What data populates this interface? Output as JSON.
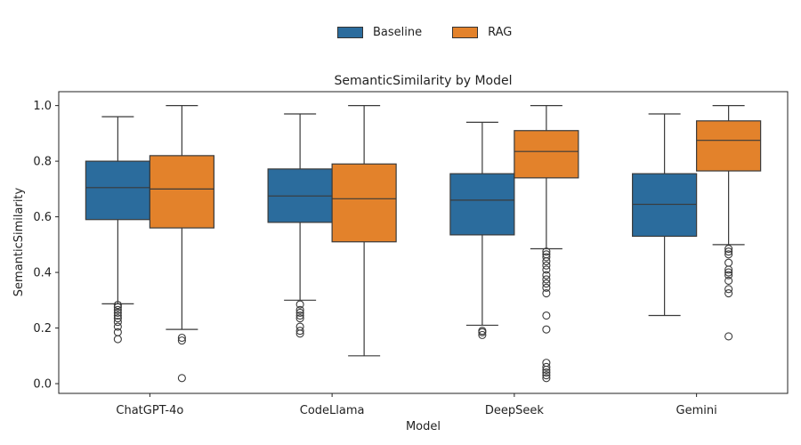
{
  "chart_data": {
    "type": "box",
    "title": "SemanticSimilarity by Model",
    "xlabel": "Model",
    "ylabel": "SemanticSimilarity",
    "categories": [
      "ChatGPT-4o",
      "CodeLlama",
      "DeepSeek",
      "Gemini"
    ],
    "ylim": [
      -0.035,
      1.05
    ],
    "yticks": [
      0.0,
      0.2,
      0.4,
      0.6,
      0.8,
      1.0
    ],
    "ytick_labels": [
      "0.0",
      "0.2",
      "0.4",
      "0.6",
      "0.8",
      "1.0"
    ],
    "legend_position": "top-center",
    "grid": false,
    "series": [
      {
        "name": "Baseline",
        "color": "#2b6c9d",
        "boxes": [
          {
            "q1": 0.59,
            "median": 0.705,
            "q3": 0.8,
            "whisker_low": 0.287,
            "whisker_high": 0.96,
            "outliers": [
              0.283,
              0.275,
              0.265,
              0.255,
              0.245,
              0.235,
              0.222,
              0.205,
              0.185,
              0.16
            ]
          },
          {
            "q1": 0.58,
            "median": 0.675,
            "q3": 0.772,
            "whisker_low": 0.3,
            "whisker_high": 0.97,
            "outliers": [
              0.285,
              0.265,
              0.255,
              0.245,
              0.235,
              0.205,
              0.19,
              0.18
            ]
          },
          {
            "q1": 0.535,
            "median": 0.66,
            "q3": 0.755,
            "whisker_low": 0.21,
            "whisker_high": 0.94,
            "outliers": [
              0.19,
              0.185,
              0.175
            ]
          },
          {
            "q1": 0.53,
            "median": 0.645,
            "q3": 0.755,
            "whisker_low": 0.245,
            "whisker_high": 0.97,
            "outliers": []
          }
        ]
      },
      {
        "name": "RAG",
        "color": "#e3822b",
        "boxes": [
          {
            "q1": 0.56,
            "median": 0.7,
            "q3": 0.82,
            "whisker_low": 0.195,
            "whisker_high": 1.0,
            "outliers": [
              0.165,
              0.155,
              0.02
            ]
          },
          {
            "q1": 0.51,
            "median": 0.665,
            "q3": 0.79,
            "whisker_low": 0.1,
            "whisker_high": 1.0,
            "outliers": []
          },
          {
            "q1": 0.74,
            "median": 0.835,
            "q3": 0.91,
            "whisker_low": 0.485,
            "whisker_high": 1.0,
            "outliers": [
              0.475,
              0.465,
              0.455,
              0.44,
              0.425,
              0.41,
              0.39,
              0.375,
              0.36,
              0.345,
              0.325,
              0.245,
              0.195,
              0.075,
              0.06,
              0.05,
              0.04,
              0.03,
              0.02
            ]
          },
          {
            "q1": 0.765,
            "median": 0.875,
            "q3": 0.945,
            "whisker_low": 0.5,
            "whisker_high": 1.0,
            "outliers": [
              0.485,
              0.475,
              0.465,
              0.435,
              0.41,
              0.4,
              0.39,
              0.37,
              0.34,
              0.325,
              0.17
            ]
          }
        ]
      }
    ]
  }
}
